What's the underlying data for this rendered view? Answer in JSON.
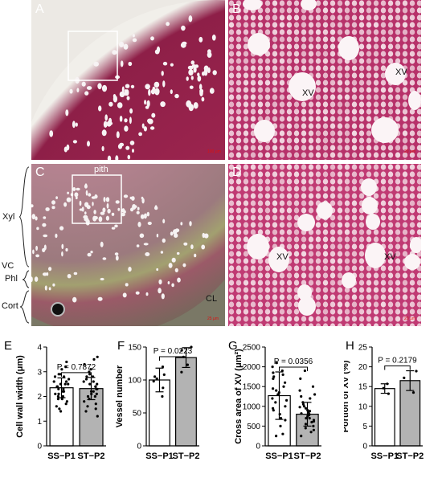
{
  "figure": {
    "panels": {
      "A": {
        "label": "A",
        "scale_text": "100 μm"
      },
      "B": {
        "label": "B",
        "markers": [
          "XV",
          "XV"
        ],
        "scale_text": "20 μm"
      },
      "C": {
        "label": "C",
        "pith": "pith",
        "scale_text": "25 μm",
        "cl": "CL"
      },
      "D": {
        "label": "D",
        "markers": [
          "XV",
          "XV"
        ],
        "scale_text": "20 μm"
      }
    },
    "tissue_labels": {
      "xyl": "Xyl",
      "vc": "VC",
      "phl": "Phl",
      "cort": "Cort"
    },
    "colors": {
      "stain": "#b0245a",
      "vessel": "#f5eef0",
      "bark": "#9a9b6e",
      "bg_dark": "#3a3a3a"
    }
  },
  "chart_data": [
    {
      "type": "bar",
      "panel": "E",
      "categories": [
        "SS−P1",
        "ST−P2"
      ],
      "values": [
        2.35,
        2.32
      ],
      "errors": [
        0.4,
        0.45
      ],
      "ylabel": "Cell wall width (μm)",
      "ylim": [
        0,
        4
      ],
      "yticks": [
        0,
        1,
        2,
        3,
        4
      ],
      "pvalue": "P = 0.7872",
      "bar_colors": [
        "#ffffff",
        "#b3b3b3"
      ],
      "points": [
        [
          2.2,
          2.5,
          1.9,
          2.8,
          2.4,
          3.2,
          1.6,
          2.1,
          2.6,
          2.9,
          2.3,
          1.8,
          2.7,
          3.1,
          2.0,
          1.4,
          2.5,
          2.2,
          2.4,
          3.4,
          2.1,
          1.7,
          2.6,
          2.3,
          2.9,
          1.9,
          2.0,
          2.8,
          2.5,
          1.5
        ],
        [
          2.1,
          2.6,
          1.8,
          2.9,
          2.3,
          3.3,
          1.5,
          2.2,
          2.5,
          3.0,
          2.4,
          1.7,
          2.8,
          3.5,
          2.0,
          1.2,
          2.4,
          2.3,
          2.6,
          3.1,
          2.0,
          1.6,
          2.7,
          2.2,
          2.8,
          1.9,
          2.1,
          3.6,
          2.5,
          1.4
        ]
      ]
    },
    {
      "type": "bar",
      "panel": "F",
      "categories": [
        "SS−P1",
        "ST−P2"
      ],
      "values": [
        100,
        134
      ],
      "errors": [
        18,
        15
      ],
      "ylabel": "Vessel number",
      "ylim": [
        0,
        150
      ],
      "yticks": [
        0,
        50,
        100,
        150
      ],
      "pvalue": "P = 0.0223",
      "bar_colors": [
        "#ffffff",
        "#b3b3b3"
      ],
      "points": [
        [
          75,
          88,
          98,
          102,
          105,
          108,
          120
        ],
        [
          112,
          123,
          135,
          145,
          150
        ]
      ]
    },
    {
      "type": "bar",
      "panel": "G",
      "categories": [
        "SS−P1",
        "ST−P2"
      ],
      "values": [
        1270,
        800
      ],
      "errors": [
        600,
        300
      ],
      "ylabel": "Cross area of XV (μm²)",
      "ylim": [
        0,
        2500
      ],
      "yticks": [
        0,
        500,
        1000,
        1500,
        2000,
        2500
      ],
      "pvalue": "P = 0.0356",
      "bar_colors": [
        "#ffffff",
        "#b3b3b3"
      ],
      "points": [
        [
          300,
          500,
          650,
          800,
          900,
          1000,
          1100,
          1200,
          1300,
          1400,
          1500,
          1600,
          1700,
          1800,
          1900,
          2000,
          2100,
          250,
          700,
          1150,
          1450,
          1750,
          950,
          1350,
          1850
        ],
        [
          250,
          400,
          500,
          550,
          600,
          650,
          700,
          750,
          800,
          850,
          900,
          950,
          1000,
          1100,
          1200,
          1300,
          1400,
          1500,
          1700,
          1900,
          450,
          620,
          780,
          880,
          980,
          1050,
          1250,
          350,
          700,
          820
        ]
      ]
    },
    {
      "type": "bar",
      "panel": "H",
      "categories": [
        "SS−P1",
        "ST−P2"
      ],
      "values": [
        14.5,
        16.5
      ],
      "errors": [
        1.2,
        2.5
      ],
      "ylabel": "Portion of XV (%)",
      "ylim": [
        0,
        25
      ],
      "yticks": [
        0,
        5,
        10,
        15,
        20,
        25
      ],
      "pvalue": "P = 0.2179",
      "bar_colors": [
        "#ffffff",
        "#b3b3b3"
      ],
      "points": [
        [
          13.2,
          14.6,
          15.7
        ],
        [
          13.5,
          17.2,
          18.9
        ]
      ]
    }
  ]
}
